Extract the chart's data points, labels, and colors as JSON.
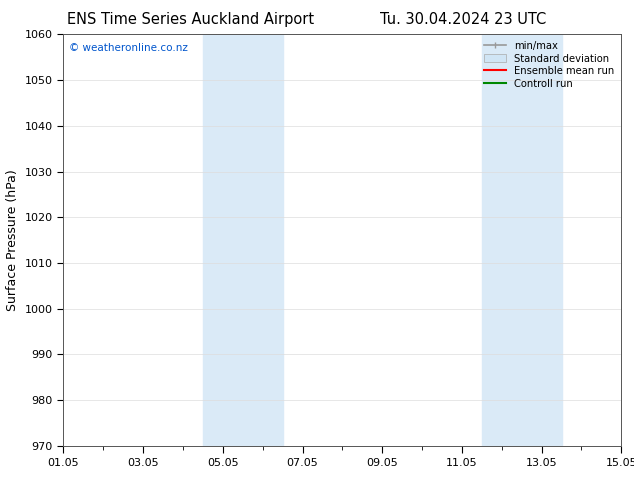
{
  "title_left": "ENS Time Series Auckland Airport",
  "title_right": "Tu. 30.04.2024 23 UTC",
  "ylabel": "Surface Pressure (hPa)",
  "ylim": [
    970,
    1060
  ],
  "yticks": [
    970,
    980,
    990,
    1000,
    1010,
    1020,
    1030,
    1040,
    1050,
    1060
  ],
  "xlim": [
    0,
    14
  ],
  "xtick_labels": [
    "01.05",
    "03.05",
    "05.05",
    "07.05",
    "09.05",
    "11.05",
    "13.05",
    "15.05"
  ],
  "xtick_positions": [
    0,
    2,
    4,
    6,
    8,
    10,
    12,
    14
  ],
  "shaded_bands": [
    {
      "x_start": 3.5,
      "x_end": 5.5,
      "color": "#daeaf7"
    },
    {
      "x_start": 10.5,
      "x_end": 12.5,
      "color": "#daeaf7"
    }
  ],
  "watermark_text": "© weatheronline.co.nz",
  "watermark_color": "#0055cc",
  "legend_entries": [
    {
      "label": "min/max",
      "type": "line",
      "color": "#999999",
      "lw": 1.2
    },
    {
      "label": "Standard deviation",
      "type": "patch",
      "color": "#d0e5f5"
    },
    {
      "label": "Ensemble mean run",
      "type": "line",
      "color": "#ff0000",
      "lw": 1.5
    },
    {
      "label": "Controll run",
      "type": "line",
      "color": "#008800",
      "lw": 1.5
    }
  ],
  "background_color": "#ffffff",
  "grid_color": "#dddddd",
  "title_fontsize": 10.5,
  "axis_label_fontsize": 9,
  "tick_fontsize": 8,
  "watermark_fontsize": 7.5
}
